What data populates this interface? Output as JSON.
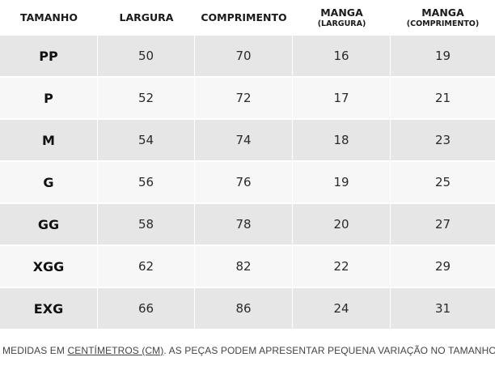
{
  "table": {
    "headers": [
      {
        "label": "TAMANHO",
        "sub": ""
      },
      {
        "label": "LARGURA",
        "sub": ""
      },
      {
        "label": "COMPRIMENTO",
        "sub": ""
      },
      {
        "label": "MANGA",
        "sub": "(LARGURA)"
      },
      {
        "label": "MANGA",
        "sub": "(COMPRIMENTO)"
      }
    ],
    "rows": [
      {
        "size": "PP",
        "largura": "50",
        "comprimento": "70",
        "manga_largura": "16",
        "manga_comprimento": "19"
      },
      {
        "size": "P",
        "largura": "52",
        "comprimento": "72",
        "manga_largura": "17",
        "manga_comprimento": "21"
      },
      {
        "size": "M",
        "largura": "54",
        "comprimento": "74",
        "manga_largura": "18",
        "manga_comprimento": "23"
      },
      {
        "size": "G",
        "largura": "56",
        "comprimento": "76",
        "manga_largura": "19",
        "manga_comprimento": "25"
      },
      {
        "size": "GG",
        "largura": "58",
        "comprimento": "78",
        "manga_largura": "20",
        "manga_comprimento": "27"
      },
      {
        "size": "XGG",
        "largura": "62",
        "comprimento": "82",
        "manga_largura": "22",
        "manga_comprimento": "29"
      },
      {
        "size": "EXG",
        "largura": "66",
        "comprimento": "86",
        "manga_largura": "24",
        "manga_comprimento": "31"
      }
    ]
  },
  "footnote": {
    "prefix": "MEDIDAS EM ",
    "unit": "CENTÍMETROS (CM)",
    "suffix": ". AS PEÇAS PODEM APRESENTAR PEQUENA VARIAÇÃO NO TAMANHO )"
  },
  "colors": {
    "row_shaded": "#e6e6e6",
    "row_light": "#f7f7f7",
    "text": "#1a1a1a"
  }
}
